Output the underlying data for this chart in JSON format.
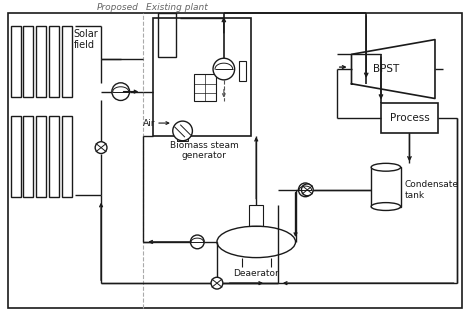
{
  "background_color": "#ffffff",
  "line_color": "#1a1a1a",
  "labels": {
    "solar_field": "Solar\nfield",
    "biomass": "Biomass steam\ngenerator",
    "bpst": "BPST",
    "process": "Process",
    "condensate": "Condensate\ntank",
    "deaerator": "Deaerator",
    "air": "Air"
  },
  "proposed_label": "Proposed",
  "existing_label": "Existing plant",
  "figsize": [
    4.74,
    3.14
  ],
  "dpi": 100
}
